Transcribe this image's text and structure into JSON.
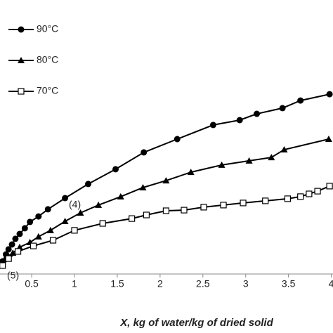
{
  "chart_data": {
    "type": "line",
    "xlabel": "X, kg of water/kg of dried solid",
    "annotations": [
      "(4)",
      "(5)"
    ],
    "xlim": [
      0.13,
      4.02
    ],
    "ylim": [
      0,
      100
    ],
    "xticks": [
      0.5,
      1,
      1.5,
      2,
      2.5,
      3,
      3.5,
      4
    ],
    "series": [
      {
        "name": "90°C",
        "color": "#000000",
        "marker": "circle",
        "x": [
          0.16,
          0.2,
          0.23,
          0.27,
          0.31,
          0.36,
          0.42,
          0.48,
          0.58,
          0.69,
          0.89,
          1.16,
          1.48,
          1.81,
          2.2,
          2.62,
          2.93,
          3.13,
          3.43,
          3.64,
          3.98
        ],
        "values": [
          6,
          9.3,
          11.7,
          14,
          16.7,
          19,
          21.7,
          24.7,
          27.3,
          30.7,
          36,
          42.7,
          49.7,
          57.7,
          64,
          70.7,
          73,
          76,
          78.7,
          82.3,
          85.3
        ]
      },
      {
        "name": "80°C",
        "color": "#000000",
        "marker": "triangle",
        "x": [
          0.16,
          0.21,
          0.28,
          0.36,
          0.48,
          0.58,
          0.72,
          0.89,
          1.07,
          1.28,
          1.54,
          1.8,
          2.07,
          2.36,
          2.72,
          3.04,
          3.3,
          3.45,
          3.97
        ],
        "values": [
          5,
          8,
          10,
          12.7,
          15,
          17.7,
          20.7,
          25,
          29,
          32.7,
          36.7,
          41,
          44.3,
          48.3,
          51.7,
          53.7,
          55.3,
          59,
          64
        ]
      },
      {
        "name": "70°C",
        "color": "#000000",
        "marker": "square",
        "x": [
          0.16,
          0.23,
          0.34,
          0.52,
          0.75,
          1.0,
          1.33,
          1.67,
          1.84,
          2.07,
          2.28,
          2.51,
          2.74,
          2.97,
          3.23,
          3.49,
          3.64,
          3.74,
          3.84,
          3.98
        ],
        "values": [
          4,
          7.3,
          10.7,
          13.3,
          16,
          20.7,
          24,
          26.3,
          28,
          30,
          30.3,
          31.7,
          32.7,
          33.7,
          34.7,
          35.7,
          36.7,
          38,
          39.3,
          41.7
        ]
      }
    ]
  }
}
